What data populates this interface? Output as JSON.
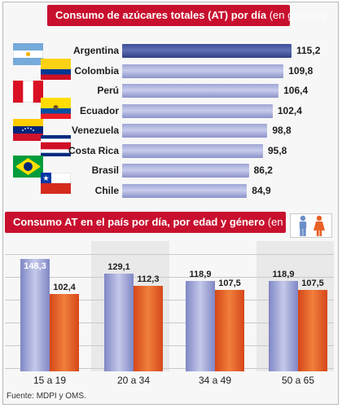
{
  "titles": {
    "top_main": "Consumo de azúcares totales (AT) por día",
    "top_unit": "(en gramos)",
    "bottom_main": "Consumo AT en el país por día, por edad y género",
    "bottom_unit": "(en gramos)"
  },
  "source": "Fuente: MDPI y OMS.",
  "colors": {
    "title_bg": "#c8102e",
    "male": "#9fa6d6",
    "female": "#e8622a",
    "highlight": "#3c4e97"
  },
  "chart_data": [
    {
      "type": "bar",
      "orientation": "horizontal",
      "title": "Consumo de azúcares totales (AT) por día (en gramos)",
      "categories": [
        "Argentina",
        "Colombia",
        "Perú",
        "Ecuador",
        "Venezuela",
        "Costa Rica",
        "Brasil",
        "Chile"
      ],
      "values": [
        115.2,
        109.8,
        106.4,
        102.4,
        98.8,
        95.8,
        86.2,
        84.9
      ],
      "value_labels": [
        "115,2",
        "109,8",
        "106,4",
        "102,4",
        "98,8",
        "95,8",
        "86,2",
        "84,9"
      ],
      "highlight": "Argentina"
    },
    {
      "type": "bar",
      "title": "Consumo AT en el país por día, por edad y género (en gramos)",
      "categories": [
        "15 a 19",
        "20 a 34",
        "34 a 49",
        "50 a 65"
      ],
      "series": [
        {
          "name": "Hombres",
          "values": [
            148.3,
            129.1,
            118.9,
            118.9
          ],
          "labels": [
            "148,3",
            "129,1",
            "118,9",
            "118,9"
          ]
        },
        {
          "name": "Mujeres",
          "values": [
            102.4,
            112.3,
            107.5,
            107.5
          ],
          "labels": [
            "102,4",
            "112,3",
            "107,5",
            "107,5"
          ]
        }
      ]
    }
  ]
}
